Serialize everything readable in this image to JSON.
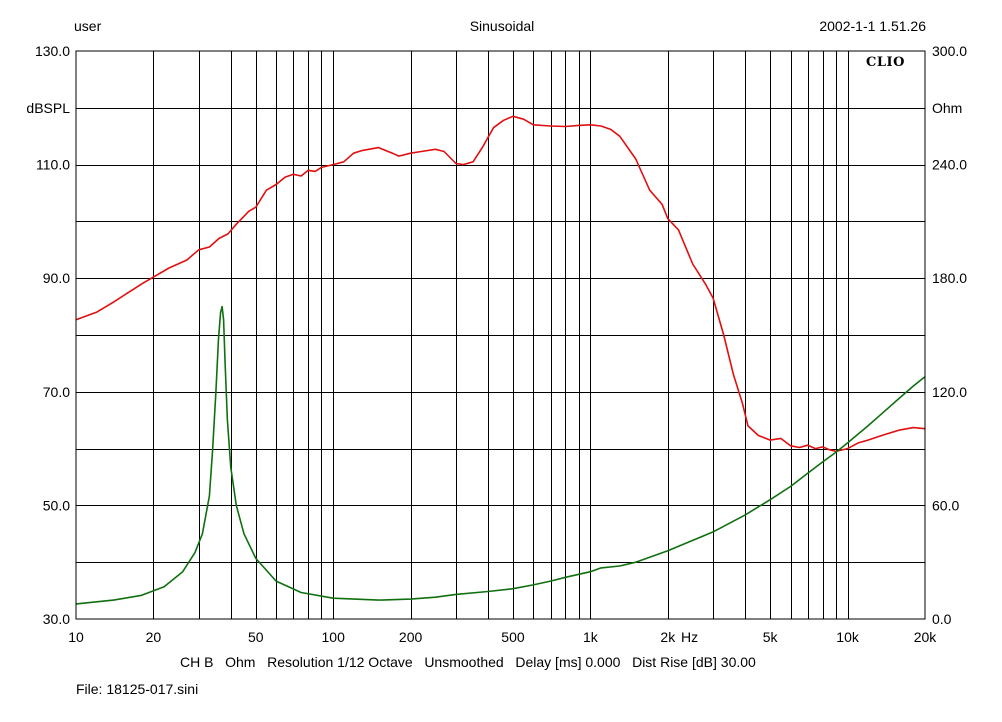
{
  "header": {
    "left": "user",
    "center": "Sinusoidal",
    "right": "2002-1-1 1.51.26"
  },
  "brand": "CLIO",
  "footer": {
    "settings": "CH B   Ohm   Resolution 1/12 Octave   Unsmoothed   Delay [ms] 0.000   Dist Rise [dB] 30.00",
    "file": "File: 18125-017.sini"
  },
  "colors": {
    "spl": "#e01010",
    "impedance": "#107010",
    "grid": "#000000"
  },
  "chart_data": {
    "type": "line",
    "x_scale": "log",
    "xlim": [
      10,
      20000
    ],
    "x_ticks": [
      {
        "v": 10,
        "label": "10"
      },
      {
        "v": 20,
        "label": "20"
      },
      {
        "v": 50,
        "label": "50"
      },
      {
        "v": 100,
        "label": "100"
      },
      {
        "v": 200,
        "label": "200"
      },
      {
        "v": 500,
        "label": "500"
      },
      {
        "v": 1000,
        "label": "1k"
      },
      {
        "v": 2000,
        "label": "2k"
      },
      {
        "v": 5000,
        "label": "5k"
      },
      {
        "v": 10000,
        "label": "10k"
      },
      {
        "v": 20000,
        "label": "20k"
      }
    ],
    "x_unit": "Hz",
    "left_axis": {
      "label": "dBSPL",
      "ylim": [
        30,
        130
      ],
      "ticks": [
        {
          "v": 130,
          "label": "130.0"
        },
        {
          "v": 110,
          "label": "110.0"
        },
        {
          "v": 90,
          "label": "90.0"
        },
        {
          "v": 70,
          "label": "70.0"
        },
        {
          "v": 50,
          "label": "50.0"
        },
        {
          "v": 30,
          "label": "30.0"
        }
      ]
    },
    "right_axis": {
      "label": "Ohm",
      "ylim": [
        0,
        300
      ],
      "ticks": [
        {
          "v": 300,
          "label": "300.0"
        },
        {
          "v": 240,
          "label": "240.0"
        },
        {
          "v": 180,
          "label": "180.0"
        },
        {
          "v": 120,
          "label": "120.0"
        },
        {
          "v": 60,
          "label": "60.0"
        },
        {
          "v": 0,
          "label": "0.0"
        }
      ]
    },
    "grid": true,
    "series": [
      {
        "name": "dBSPL",
        "axis": "left",
        "color": "#e01010",
        "points": [
          [
            10,
            82.7
          ],
          [
            12,
            84.0
          ],
          [
            14,
            85.8
          ],
          [
            16,
            87.5
          ],
          [
            18,
            89.0
          ],
          [
            20,
            90.2
          ],
          [
            23,
            91.8
          ],
          [
            27,
            93.2
          ],
          [
            30,
            95.0
          ],
          [
            33,
            95.5
          ],
          [
            36,
            97.0
          ],
          [
            39,
            97.8
          ],
          [
            42,
            99.5
          ],
          [
            47,
            101.8
          ],
          [
            50,
            102.5
          ],
          [
            55,
            105.5
          ],
          [
            60,
            106.5
          ],
          [
            65,
            107.8
          ],
          [
            70,
            108.3
          ],
          [
            75,
            108.0
          ],
          [
            80,
            109.0
          ],
          [
            85,
            108.8
          ],
          [
            90,
            109.5
          ],
          [
            100,
            110.0
          ],
          [
            110,
            110.5
          ],
          [
            120,
            112.0
          ],
          [
            130,
            112.5
          ],
          [
            150,
            113.0
          ],
          [
            170,
            112.0
          ],
          [
            180,
            111.5
          ],
          [
            200,
            112.0
          ],
          [
            220,
            112.3
          ],
          [
            250,
            112.7
          ],
          [
            270,
            112.3
          ],
          [
            300,
            110.2
          ],
          [
            320,
            110.0
          ],
          [
            350,
            110.5
          ],
          [
            380,
            113.0
          ],
          [
            420,
            116.5
          ],
          [
            460,
            117.8
          ],
          [
            500,
            118.5
          ],
          [
            550,
            118.0
          ],
          [
            600,
            117.0
          ],
          [
            700,
            116.8
          ],
          [
            800,
            116.7
          ],
          [
            900,
            116.9
          ],
          [
            1000,
            117.0
          ],
          [
            1100,
            116.8
          ],
          [
            1200,
            116.2
          ],
          [
            1300,
            115.0
          ],
          [
            1500,
            111.0
          ],
          [
            1700,
            105.5
          ],
          [
            1900,
            103.0
          ],
          [
            2000,
            100.5
          ],
          [
            2200,
            98.5
          ],
          [
            2500,
            92.5
          ],
          [
            2800,
            89.0
          ],
          [
            3000,
            86.5
          ],
          [
            3300,
            80.0
          ],
          [
            3600,
            73.0
          ],
          [
            3900,
            68.0
          ],
          [
            4100,
            64.0
          ],
          [
            4500,
            62.3
          ],
          [
            5000,
            61.5
          ],
          [
            5500,
            61.8
          ],
          [
            6000,
            60.5
          ],
          [
            6500,
            60.2
          ],
          [
            7000,
            60.6
          ],
          [
            7500,
            60.0
          ],
          [
            8000,
            60.3
          ],
          [
            8500,
            59.8
          ],
          [
            9000,
            59.5
          ],
          [
            10000,
            60.0
          ],
          [
            11000,
            61.0
          ],
          [
            12000,
            61.5
          ],
          [
            14000,
            62.5
          ],
          [
            16000,
            63.3
          ],
          [
            18000,
            63.7
          ],
          [
            20000,
            63.5
          ]
        ]
      },
      {
        "name": "Ohm",
        "axis": "right",
        "color": "#107010",
        "points": [
          [
            10,
            8.0
          ],
          [
            14,
            10.0
          ],
          [
            18,
            12.5
          ],
          [
            22,
            17.0
          ],
          [
            26,
            25.0
          ],
          [
            29,
            35.0
          ],
          [
            31,
            45.0
          ],
          [
            33,
            65.0
          ],
          [
            34,
            90.0
          ],
          [
            35,
            120.0
          ],
          [
            35.8,
            148.0
          ],
          [
            36.5,
            162.0
          ],
          [
            37,
            165.0
          ],
          [
            37.5,
            158.0
          ],
          [
            38,
            135.0
          ],
          [
            38.8,
            105.0
          ],
          [
            40,
            80.0
          ],
          [
            42,
            60.0
          ],
          [
            45,
            45.0
          ],
          [
            50,
            32.0
          ],
          [
            60,
            20.0
          ],
          [
            75,
            14.0
          ],
          [
            100,
            11.0
          ],
          [
            150,
            10.0
          ],
          [
            200,
            10.5
          ],
          [
            250,
            11.5
          ],
          [
            300,
            13.0
          ],
          [
            400,
            14.5
          ],
          [
            500,
            16.0
          ],
          [
            600,
            18.0
          ],
          [
            700,
            20.0
          ],
          [
            800,
            22.0
          ],
          [
            1000,
            25.0
          ],
          [
            1100,
            27.0
          ],
          [
            1300,
            28.0
          ],
          [
            1500,
            30.0
          ],
          [
            2000,
            36.0
          ],
          [
            3000,
            46.0
          ],
          [
            4000,
            55.0
          ],
          [
            5000,
            63.0
          ],
          [
            6000,
            70.0
          ],
          [
            7000,
            77.0
          ],
          [
            8000,
            83.0
          ],
          [
            9000,
            88.0
          ],
          [
            10000,
            93.0
          ],
          [
            12000,
            102.0
          ],
          [
            14000,
            110.0
          ],
          [
            16000,
            117.0
          ],
          [
            18000,
            123.0
          ],
          [
            20000,
            128.0
          ]
        ]
      }
    ]
  }
}
